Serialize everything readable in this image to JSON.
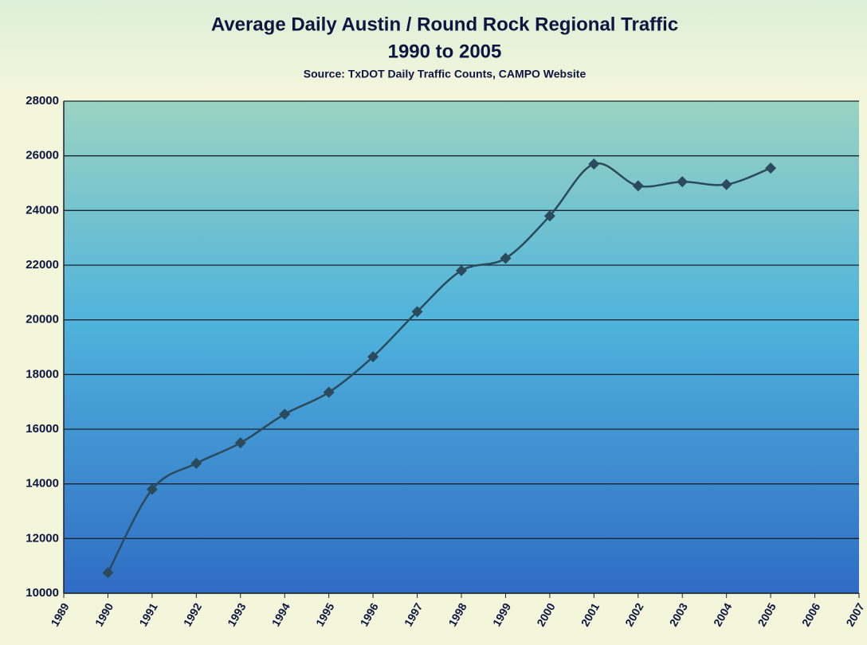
{
  "chart_data": {
    "type": "line",
    "title": "Average Daily Austin / Round Rock Regional Traffic",
    "subtitle": "1990 to 2005",
    "source": "Source: TxDOT Daily Traffic Counts, CAMPO Website",
    "x": [
      1990,
      1991,
      1992,
      1993,
      1994,
      1995,
      1996,
      1997,
      1998,
      1999,
      2000,
      2001,
      2002,
      2003,
      2004,
      2005
    ],
    "values": [
      10750,
      13800,
      14750,
      15500,
      16550,
      17350,
      18650,
      20300,
      21800,
      22250,
      23800,
      25700,
      24900,
      25050,
      24950,
      25550
    ],
    "color": "#2b4a5c",
    "smooth": true,
    "xlim": [
      1989,
      2007
    ],
    "xticks": [
      1989,
      1990,
      1991,
      1992,
      1993,
      1994,
      1995,
      1996,
      1997,
      1998,
      1999,
      2000,
      2001,
      2002,
      2003,
      2004,
      2005,
      2006,
      2007
    ],
    "ylim": [
      10000,
      28000
    ],
    "yticks": [
      10000,
      12000,
      14000,
      16000,
      18000,
      20000,
      22000,
      24000,
      26000,
      28000
    ],
    "grid": true
  }
}
